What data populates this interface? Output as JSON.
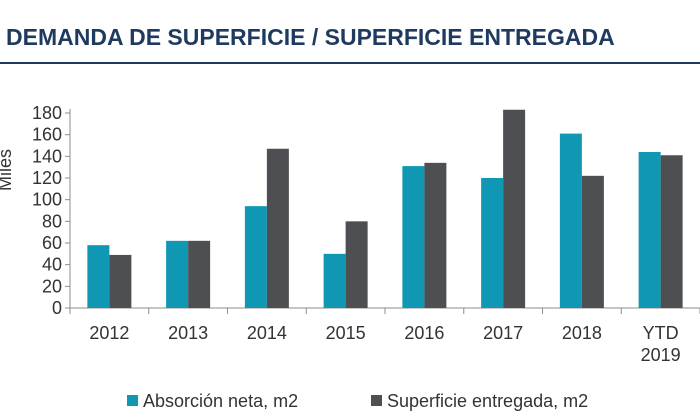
{
  "header": {
    "title": "DEMANDA DE SUPERFICIE / SUPERFICIE ENTREGADA"
  },
  "chart_data": {
    "type": "bar",
    "categories": [
      [
        "2012"
      ],
      [
        "2013"
      ],
      [
        "2014"
      ],
      [
        "2015"
      ],
      [
        "2016"
      ],
      [
        "2017"
      ],
      [
        "2018"
      ],
      [
        "YTD",
        "2019"
      ]
    ],
    "series": [
      {
        "name": "Absorción neta, m2",
        "color": "#0f97b4",
        "values": [
          58,
          62,
          94,
          50,
          131,
          120,
          161,
          144
        ]
      },
      {
        "name": "Superficie entregada, m2",
        "color": "#4d4f53",
        "values": [
          49,
          62,
          147,
          80,
          134,
          183,
          122,
          141
        ]
      }
    ],
    "ylabel": "Miles",
    "ylim": [
      0,
      180
    ],
    "yticks": [
      0,
      20,
      40,
      60,
      80,
      100,
      120,
      140,
      160,
      180
    ],
    "grid": false,
    "legend": "bottom"
  }
}
